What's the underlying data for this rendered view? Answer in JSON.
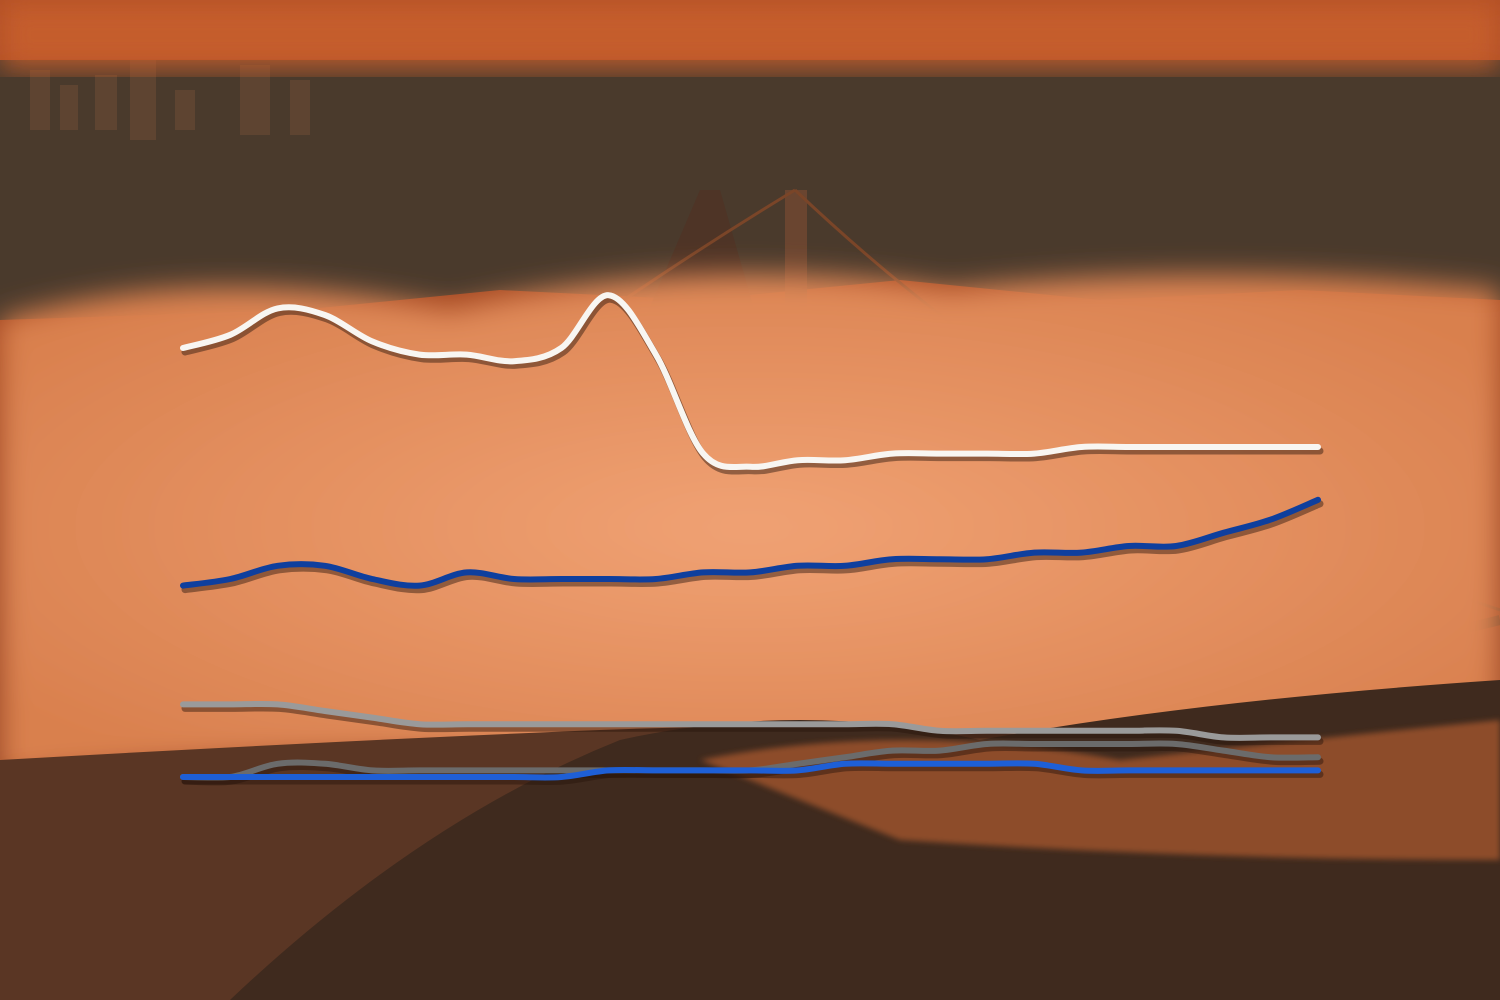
{
  "palette": {
    "sky": "#b9552a",
    "fog": "#e0895a",
    "fog_light": "#f0a878",
    "city_dark": "#3a3a2e",
    "hill_dark": "#3b2a20",
    "hill_lit": "#c66a38",
    "bridge": "#8a4a2a",
    "tower": "#5a3a2a"
  },
  "chart_data": {
    "type": "line",
    "title": "",
    "xlabel": "",
    "ylabel": "",
    "grid": false,
    "legend": "none",
    "x": [
      0,
      1,
      2,
      3,
      4,
      5,
      6,
      7,
      8,
      9,
      10,
      11,
      12,
      13,
      14,
      15,
      16,
      17,
      18,
      19,
      20,
      21,
      22,
      23,
      24
    ],
    "ylim": [
      0,
      100
    ],
    "series": [
      {
        "color": "#f8f6f2",
        "values": [
          70,
          72,
          76,
          75,
          71,
          69,
          69,
          68,
          70,
          78,
          69,
          54,
          52,
          53,
          53,
          54,
          54,
          54,
          54,
          55,
          55,
          55,
          55,
          55,
          55
        ]
      },
      {
        "color": "#0e3f9e",
        "values": [
          34,
          35,
          37,
          37,
          35,
          34,
          36,
          35,
          35,
          35,
          35,
          36,
          36,
          37,
          37,
          38,
          38,
          38,
          39,
          39,
          40,
          40,
          42,
          44,
          47
        ]
      },
      {
        "color": "#9a9a9a",
        "values": [
          16,
          16,
          16,
          15,
          14,
          13,
          13,
          13,
          13,
          13,
          13,
          13,
          13,
          13,
          13,
          13,
          12,
          12,
          12,
          12,
          12,
          12,
          11,
          11,
          11
        ]
      },
      {
        "color": "#6b6b6b",
        "values": [
          5,
          5,
          7,
          7,
          6,
          6,
          6,
          6,
          6,
          6,
          6,
          6,
          6,
          7,
          8,
          9,
          9,
          10,
          10,
          10,
          10,
          10,
          9,
          8,
          8
        ]
      },
      {
        "color": "#1e5fd6",
        "values": [
          5,
          5,
          5,
          5,
          5,
          5,
          5,
          5,
          5,
          6,
          6,
          6,
          6,
          6,
          7,
          7,
          7,
          7,
          7,
          6,
          6,
          6,
          6,
          6,
          6
        ]
      }
    ]
  }
}
